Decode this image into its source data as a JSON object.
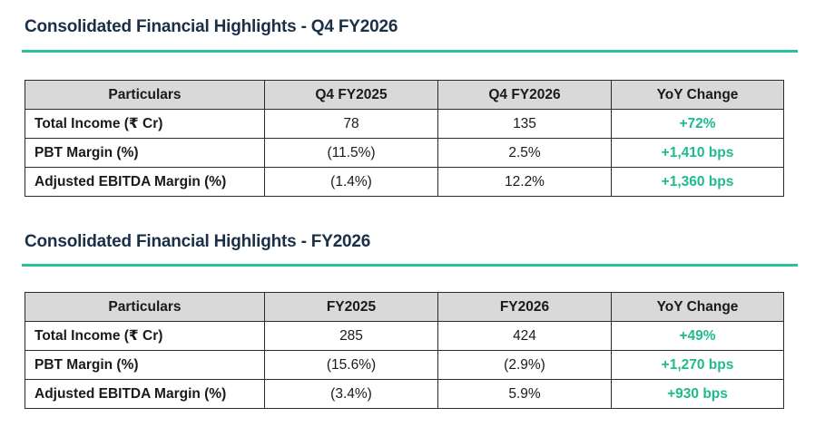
{
  "sections": [
    {
      "title": "Consolidated Financial Highlights - Q4 FY2026",
      "headers": [
        "Particulars",
        "Q4 FY2025",
        "Q4 FY2026",
        "YoY Change"
      ],
      "rows": [
        {
          "label": "Total Income (₹ Cr)",
          "prev": "78",
          "curr": "135",
          "yoy": "+72%"
        },
        {
          "label": "PBT Margin (%)",
          "prev": "(11.5%)",
          "curr": "2.5%",
          "yoy": "+1,410 bps"
        },
        {
          "label": "Adjusted EBITDA Margin (%)",
          "prev": "(1.4%)",
          "curr": "12.2%",
          "yoy": "+1,360 bps"
        }
      ]
    },
    {
      "title": "Consolidated Financial Highlights - FY2026",
      "headers": [
        "Particulars",
        "FY2025",
        "FY2026",
        "YoY Change"
      ],
      "rows": [
        {
          "label": "Total Income (₹ Cr)",
          "prev": "285",
          "curr": "424",
          "yoy": "+49%"
        },
        {
          "label": "PBT Margin (%)",
          "prev": "(15.6%)",
          "curr": "(2.9%)",
          "yoy": "+1,270 bps"
        },
        {
          "label": "Adjusted EBITDA Margin (%)",
          "prev": "(3.4%)",
          "curr": "5.9%",
          "yoy": "+930 bps"
        }
      ]
    }
  ],
  "colors": {
    "title": "#1b2f47",
    "accent_rule": "#2bbf9f",
    "header_bg": "#d9d9d9",
    "positive_change": "#1fba8e"
  }
}
